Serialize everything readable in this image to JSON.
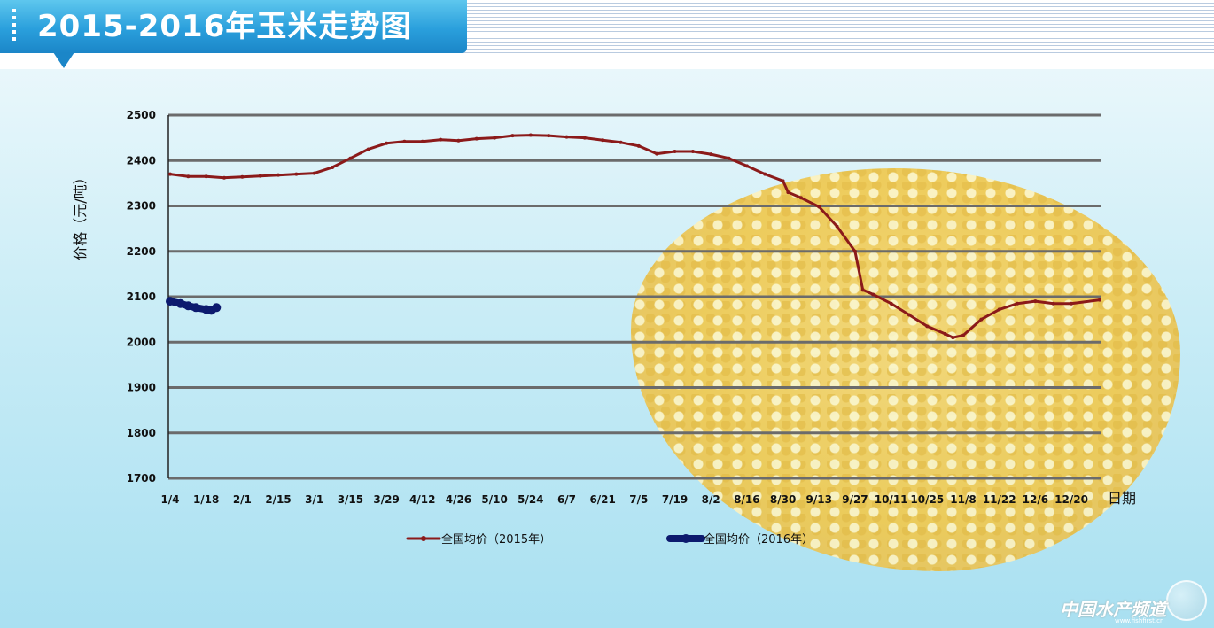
{
  "header": {
    "title": "2015-2016年玉米走势图"
  },
  "watermark": {
    "brand": "中国水产频道",
    "url": "www.fishfirst.cn"
  },
  "colors": {
    "series_2015": "#8b1a1a",
    "series_2016": "#0d1a6e",
    "grid": "#6b6b6b",
    "axis": "#222222"
  },
  "chart_data": {
    "type": "line",
    "title": "2015-2016年玉米走势图",
    "xlabel": "日期",
    "ylabel": "价格（元/吨）",
    "ylim": [
      1700,
      2500
    ],
    "yticks": [
      1700,
      1800,
      1900,
      2000,
      2100,
      2200,
      2300,
      2400,
      2500
    ],
    "xticks": [
      "1/4",
      "1/18",
      "2/1",
      "2/15",
      "3/1",
      "3/15",
      "3/29",
      "4/12",
      "4/26",
      "5/10",
      "5/24",
      "6/7",
      "6/21",
      "7/5",
      "7/19",
      "8/2",
      "8/16",
      "8/30",
      "9/13",
      "9/27",
      "10/11",
      "10/25",
      "11/8",
      "11/22",
      "12/6",
      "12/20"
    ],
    "grid": true,
    "legend_position": "bottom",
    "series": [
      {
        "name": "全国均价（2015年）",
        "color": "#8b1a1a",
        "points": [
          [
            "1/4",
            2370
          ],
          [
            "1/11",
            2365
          ],
          [
            "1/18",
            2365
          ],
          [
            "1/25",
            2362
          ],
          [
            "2/1",
            2364
          ],
          [
            "2/8",
            2366
          ],
          [
            "2/15",
            2368
          ],
          [
            "2/22",
            2370
          ],
          [
            "3/1",
            2372
          ],
          [
            "3/8",
            2385
          ],
          [
            "3/15",
            2405
          ],
          [
            "3/22",
            2425
          ],
          [
            "3/29",
            2438
          ],
          [
            "4/5",
            2442
          ],
          [
            "4/12",
            2442
          ],
          [
            "4/19",
            2446
          ],
          [
            "4/26",
            2444
          ],
          [
            "5/3",
            2448
          ],
          [
            "5/10",
            2450
          ],
          [
            "5/17",
            2455
          ],
          [
            "5/24",
            2456
          ],
          [
            "5/31",
            2455
          ],
          [
            "6/7",
            2452
          ],
          [
            "6/14",
            2450
          ],
          [
            "6/21",
            2445
          ],
          [
            "6/28",
            2440
          ],
          [
            "7/5",
            2432
          ],
          [
            "7/12",
            2415
          ],
          [
            "7/19",
            2420
          ],
          [
            "7/26",
            2420
          ],
          [
            "8/2",
            2414
          ],
          [
            "8/9",
            2405
          ],
          [
            "8/16",
            2388
          ],
          [
            "8/23",
            2370
          ],
          [
            "8/30",
            2355
          ],
          [
            "9/1",
            2330
          ],
          [
            "9/6",
            2318
          ],
          [
            "9/13",
            2298
          ],
          [
            "9/20",
            2255
          ],
          [
            "9/27",
            2200
          ],
          [
            "9/30",
            2115
          ],
          [
            "10/4",
            2105
          ],
          [
            "10/11",
            2085
          ],
          [
            "10/18",
            2060
          ],
          [
            "10/25",
            2035
          ],
          [
            "11/1",
            2018
          ],
          [
            "11/4",
            2010
          ],
          [
            "11/8",
            2015
          ],
          [
            "11/15",
            2050
          ],
          [
            "11/22",
            2072
          ],
          [
            "11/29",
            2085
          ],
          [
            "12/6",
            2090
          ],
          [
            "12/13",
            2085
          ],
          [
            "12/20",
            2085
          ],
          [
            "12/31",
            2093
          ]
        ]
      },
      {
        "name": "全国均价（2016年）",
        "color": "#0d1a6e",
        "points": [
          [
            "1/4",
            2090
          ],
          [
            "1/8",
            2085
          ],
          [
            "1/11",
            2080
          ],
          [
            "1/14",
            2076
          ],
          [
            "1/18",
            2072
          ],
          [
            "1/20",
            2070
          ],
          [
            "1/22",
            2076
          ]
        ]
      }
    ]
  }
}
